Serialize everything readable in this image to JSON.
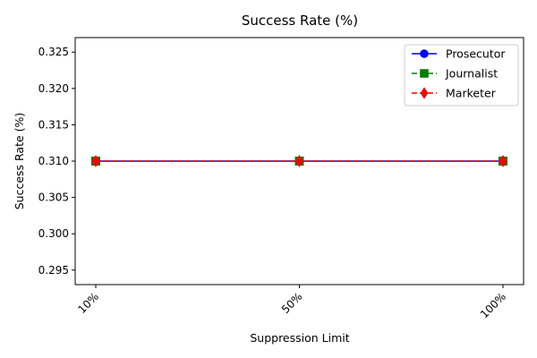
{
  "chart_data": {
    "type": "line",
    "title": "Success Rate (%)",
    "xlabel": "Suppression Limit",
    "ylabel": "Success Rate (%)",
    "categories": [
      "10%",
      "50%",
      "100%"
    ],
    "ylim": [
      0.293,
      0.327
    ],
    "yticks": [
      "0.295",
      "0.300",
      "0.305",
      "0.310",
      "0.315",
      "0.320",
      "0.325"
    ],
    "grid": false,
    "legend_position": "top-right",
    "series": [
      {
        "name": "Prosecutor",
        "values": [
          0.31,
          0.31,
          0.31
        ],
        "color": "#0000ff",
        "marker": "circle",
        "line_style": "solid"
      },
      {
        "name": "Journalist",
        "values": [
          0.31,
          0.31,
          0.31
        ],
        "color": "#008000",
        "marker": "square",
        "line_style": "dashed"
      },
      {
        "name": "Marketer",
        "values": [
          0.31,
          0.31,
          0.31
        ],
        "color": "#ff0000",
        "marker": "diamond",
        "line_style": "dashed"
      }
    ]
  }
}
